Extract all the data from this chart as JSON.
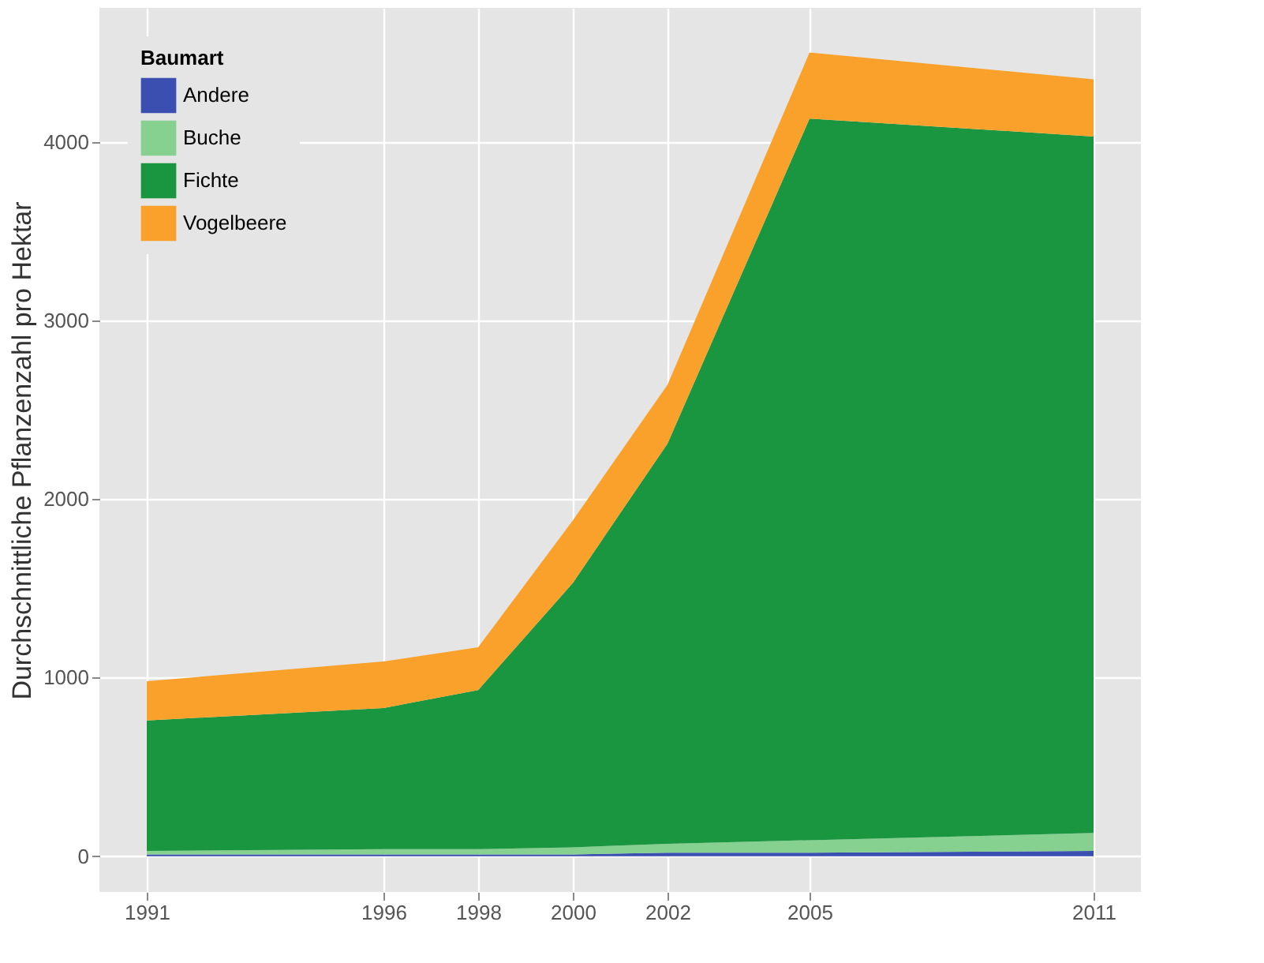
{
  "chart_data": {
    "type": "area",
    "stacked": true,
    "ylabel": "Durchschnittliche Pflanzenzahl pro Hektar",
    "legend_title": "Baumart",
    "x": [
      1991,
      1996,
      1998,
      2000,
      2002,
      2005,
      2011
    ],
    "series": [
      {
        "name": "Andere",
        "color": "#3a4fb0",
        "values": [
          10,
          10,
          10,
          10,
          20,
          20,
          30
        ]
      },
      {
        "name": "Buche",
        "color": "#86d18f",
        "values": [
          20,
          30,
          30,
          40,
          50,
          70,
          100
        ]
      },
      {
        "name": "Fichte",
        "color": "#1a9641",
        "values": [
          730,
          790,
          890,
          1480,
          2240,
          4040,
          3900
        ]
      },
      {
        "name": "Vogelbeere",
        "color": "#f9a12b",
        "values": [
          220,
          260,
          240,
          350,
          330,
          370,
          320
        ]
      }
    ],
    "xlim": [
      1990,
      2012
    ],
    "xticks": [
      1991,
      1996,
      1998,
      2000,
      2002,
      2005,
      2011
    ],
    "ylim": [
      -200,
      4750
    ],
    "yticks": [
      0,
      1000,
      2000,
      3000,
      4000
    ],
    "grid": true,
    "legend": "top left"
  }
}
